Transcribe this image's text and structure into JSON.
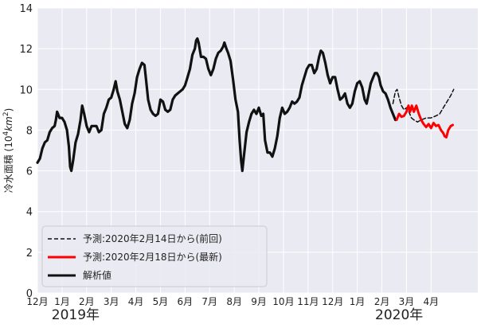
{
  "chart_data": {
    "type": "line",
    "ylabel_text": "冷水面積 (10",
    "ylabel_sup": "4",
    "ylabel_mid": "km",
    "ylabel_sup2": "2",
    "ylabel_end": ")",
    "ylim": [
      0,
      14
    ],
    "yticks": [
      0,
      2,
      4,
      6,
      8,
      10,
      12,
      14
    ],
    "xlim": [
      0,
      17.9
    ],
    "xticks": [
      {
        "pos": 0,
        "label": "12月"
      },
      {
        "pos": 1,
        "label": "1月"
      },
      {
        "pos": 2,
        "label": "2月"
      },
      {
        "pos": 3,
        "label": "3月"
      },
      {
        "pos": 4,
        "label": "4月"
      },
      {
        "pos": 5,
        "label": "5月"
      },
      {
        "pos": 6,
        "label": "6月"
      },
      {
        "pos": 7,
        "label": "7月"
      },
      {
        "pos": 8,
        "label": "8月"
      },
      {
        "pos": 9,
        "label": "9月"
      },
      {
        "pos": 10,
        "label": "10月"
      },
      {
        "pos": 11,
        "label": "11月"
      },
      {
        "pos": 12,
        "label": "12月"
      },
      {
        "pos": 13,
        "label": "1月"
      },
      {
        "pos": 14,
        "label": "2月"
      },
      {
        "pos": 15,
        "label": "3月"
      },
      {
        "pos": 16,
        "label": "4月"
      }
    ],
    "year_labels": [
      {
        "pos": 1.55,
        "label": "2019年"
      },
      {
        "pos": 14.7,
        "label": "2020年"
      }
    ],
    "grid": true,
    "legend_position": "lower-left",
    "colors": {
      "background": "#eaeaf2",
      "grid": "#ffffff",
      "analysis": "#111111",
      "forecast_prev": "#111111",
      "forecast_latest": "#ff0000"
    },
    "series": [
      {
        "name": "予測:2020年2月14日から(前回)",
        "style": "dashed",
        "points": [
          [
            14.45,
            9.3
          ],
          [
            14.55,
            9.9
          ],
          [
            14.62,
            10.0
          ],
          [
            14.7,
            9.6
          ],
          [
            14.8,
            9.2
          ],
          [
            14.9,
            9.0
          ],
          [
            15.0,
            9.1
          ],
          [
            15.1,
            8.9
          ],
          [
            15.2,
            8.6
          ],
          [
            15.3,
            8.5
          ],
          [
            15.45,
            8.4
          ],
          [
            15.6,
            8.5
          ],
          [
            15.8,
            8.6
          ],
          [
            16.0,
            8.6
          ],
          [
            16.2,
            8.7
          ],
          [
            16.35,
            8.8
          ],
          [
            16.5,
            9.1
          ],
          [
            16.65,
            9.4
          ],
          [
            16.8,
            9.7
          ],
          [
            16.92,
            10.0
          ]
        ]
      },
      {
        "name": "予測:2020年2月18日から(最新)",
        "style": "solid",
        "points": [
          [
            14.6,
            8.5
          ],
          [
            14.7,
            8.8
          ],
          [
            14.8,
            8.65
          ],
          [
            14.9,
            8.7
          ],
          [
            15.0,
            8.9
          ],
          [
            15.08,
            9.2
          ],
          [
            15.15,
            8.9
          ],
          [
            15.22,
            9.2
          ],
          [
            15.3,
            8.9
          ],
          [
            15.4,
            9.2
          ],
          [
            15.5,
            8.8
          ],
          [
            15.6,
            8.5
          ],
          [
            15.7,
            8.3
          ],
          [
            15.8,
            8.15
          ],
          [
            15.9,
            8.3
          ],
          [
            16.0,
            8.1
          ],
          [
            16.1,
            8.35
          ],
          [
            16.2,
            8.2
          ],
          [
            16.3,
            8.25
          ],
          [
            16.4,
            8.0
          ],
          [
            16.5,
            7.85
          ],
          [
            16.55,
            7.7
          ],
          [
            16.62,
            7.65
          ],
          [
            16.7,
            8.0
          ],
          [
            16.8,
            8.2
          ],
          [
            16.88,
            8.25
          ]
        ]
      },
      {
        "name": "解析値",
        "style": "solid",
        "points": [
          [
            0.0,
            6.4
          ],
          [
            0.1,
            6.6
          ],
          [
            0.2,
            7.1
          ],
          [
            0.3,
            7.4
          ],
          [
            0.4,
            7.5
          ],
          [
            0.5,
            7.9
          ],
          [
            0.6,
            8.1
          ],
          [
            0.7,
            8.2
          ],
          [
            0.75,
            8.5
          ],
          [
            0.8,
            8.9
          ],
          [
            0.9,
            8.6
          ],
          [
            1.0,
            8.6
          ],
          [
            1.1,
            8.4
          ],
          [
            1.2,
            8.0
          ],
          [
            1.28,
            7.2
          ],
          [
            1.33,
            6.2
          ],
          [
            1.38,
            6.0
          ],
          [
            1.45,
            6.5
          ],
          [
            1.55,
            7.4
          ],
          [
            1.65,
            7.8
          ],
          [
            1.75,
            8.5
          ],
          [
            1.82,
            9.2
          ],
          [
            1.9,
            8.8
          ],
          [
            2.0,
            8.2
          ],
          [
            2.1,
            7.9
          ],
          [
            2.2,
            8.2
          ],
          [
            2.3,
            8.2
          ],
          [
            2.4,
            8.2
          ],
          [
            2.5,
            7.9
          ],
          [
            2.6,
            8.0
          ],
          [
            2.7,
            8.8
          ],
          [
            2.8,
            9.1
          ],
          [
            2.9,
            9.5
          ],
          [
            3.0,
            9.6
          ],
          [
            3.1,
            10.0
          ],
          [
            3.18,
            10.4
          ],
          [
            3.25,
            9.9
          ],
          [
            3.35,
            9.5
          ],
          [
            3.45,
            8.9
          ],
          [
            3.55,
            8.3
          ],
          [
            3.65,
            8.1
          ],
          [
            3.75,
            8.5
          ],
          [
            3.85,
            9.3
          ],
          [
            3.95,
            9.8
          ],
          [
            4.05,
            10.6
          ],
          [
            4.15,
            11.0
          ],
          [
            4.25,
            11.3
          ],
          [
            4.35,
            11.2
          ],
          [
            4.42,
            10.4
          ],
          [
            4.5,
            9.5
          ],
          [
            4.6,
            9.0
          ],
          [
            4.7,
            8.8
          ],
          [
            4.8,
            8.7
          ],
          [
            4.9,
            8.8
          ],
          [
            5.0,
            9.5
          ],
          [
            5.1,
            9.4
          ],
          [
            5.2,
            9.0
          ],
          [
            5.3,
            8.9
          ],
          [
            5.4,
            9.0
          ],
          [
            5.5,
            9.5
          ],
          [
            5.6,
            9.7
          ],
          [
            5.7,
            9.8
          ],
          [
            5.8,
            9.9
          ],
          [
            5.9,
            10.0
          ],
          [
            6.0,
            10.2
          ],
          [
            6.1,
            10.6
          ],
          [
            6.2,
            11.0
          ],
          [
            6.3,
            11.7
          ],
          [
            6.4,
            12.0
          ],
          [
            6.45,
            12.4
          ],
          [
            6.5,
            12.5
          ],
          [
            6.55,
            12.3
          ],
          [
            6.65,
            11.6
          ],
          [
            6.75,
            11.6
          ],
          [
            6.85,
            11.5
          ],
          [
            6.95,
            11.0
          ],
          [
            7.05,
            10.7
          ],
          [
            7.15,
            11.0
          ],
          [
            7.25,
            11.5
          ],
          [
            7.35,
            11.8
          ],
          [
            7.45,
            11.9
          ],
          [
            7.55,
            12.1
          ],
          [
            7.6,
            12.3
          ],
          [
            7.68,
            12.0
          ],
          [
            7.75,
            11.8
          ],
          [
            7.85,
            11.4
          ],
          [
            7.95,
            10.5
          ],
          [
            8.05,
            9.5
          ],
          [
            8.15,
            8.9
          ],
          [
            8.22,
            7.5
          ],
          [
            8.28,
            6.5
          ],
          [
            8.33,
            6.0
          ],
          [
            8.4,
            6.8
          ],
          [
            8.5,
            7.9
          ],
          [
            8.6,
            8.4
          ],
          [
            8.7,
            8.8
          ],
          [
            8.8,
            9.0
          ],
          [
            8.9,
            8.8
          ],
          [
            9.0,
            9.1
          ],
          [
            9.1,
            8.7
          ],
          [
            9.18,
            8.8
          ],
          [
            9.25,
            7.5
          ],
          [
            9.35,
            6.9
          ],
          [
            9.45,
            6.9
          ],
          [
            9.55,
            6.7
          ],
          [
            9.65,
            7.1
          ],
          [
            9.75,
            7.7
          ],
          [
            9.85,
            8.6
          ],
          [
            9.95,
            9.1
          ],
          [
            10.05,
            8.8
          ],
          [
            10.15,
            8.9
          ],
          [
            10.25,
            9.1
          ],
          [
            10.35,
            9.4
          ],
          [
            10.45,
            9.3
          ],
          [
            10.55,
            9.4
          ],
          [
            10.65,
            9.6
          ],
          [
            10.75,
            10.2
          ],
          [
            10.85,
            10.6
          ],
          [
            10.95,
            11.0
          ],
          [
            11.05,
            11.2
          ],
          [
            11.15,
            11.2
          ],
          [
            11.25,
            10.8
          ],
          [
            11.35,
            11.0
          ],
          [
            11.45,
            11.6
          ],
          [
            11.52,
            11.9
          ],
          [
            11.6,
            11.8
          ],
          [
            11.7,
            11.3
          ],
          [
            11.8,
            10.7
          ],
          [
            11.9,
            10.3
          ],
          [
            12.0,
            10.6
          ],
          [
            12.1,
            10.6
          ],
          [
            12.2,
            10.0
          ],
          [
            12.3,
            9.5
          ],
          [
            12.4,
            9.6
          ],
          [
            12.5,
            9.8
          ],
          [
            12.6,
            9.3
          ],
          [
            12.7,
            9.1
          ],
          [
            12.8,
            9.3
          ],
          [
            12.9,
            9.9
          ],
          [
            13.0,
            10.3
          ],
          [
            13.1,
            10.4
          ],
          [
            13.2,
            10.1
          ],
          [
            13.3,
            9.5
          ],
          [
            13.38,
            9.3
          ],
          [
            13.45,
            9.7
          ],
          [
            13.55,
            10.3
          ],
          [
            13.65,
            10.6
          ],
          [
            13.72,
            10.8
          ],
          [
            13.8,
            10.8
          ],
          [
            13.88,
            10.6
          ],
          [
            13.95,
            10.2
          ],
          [
            14.05,
            9.9
          ],
          [
            14.15,
            9.8
          ],
          [
            14.25,
            9.5
          ],
          [
            14.35,
            9.1
          ],
          [
            14.45,
            8.8
          ],
          [
            14.55,
            8.5
          ]
        ]
      }
    ]
  }
}
